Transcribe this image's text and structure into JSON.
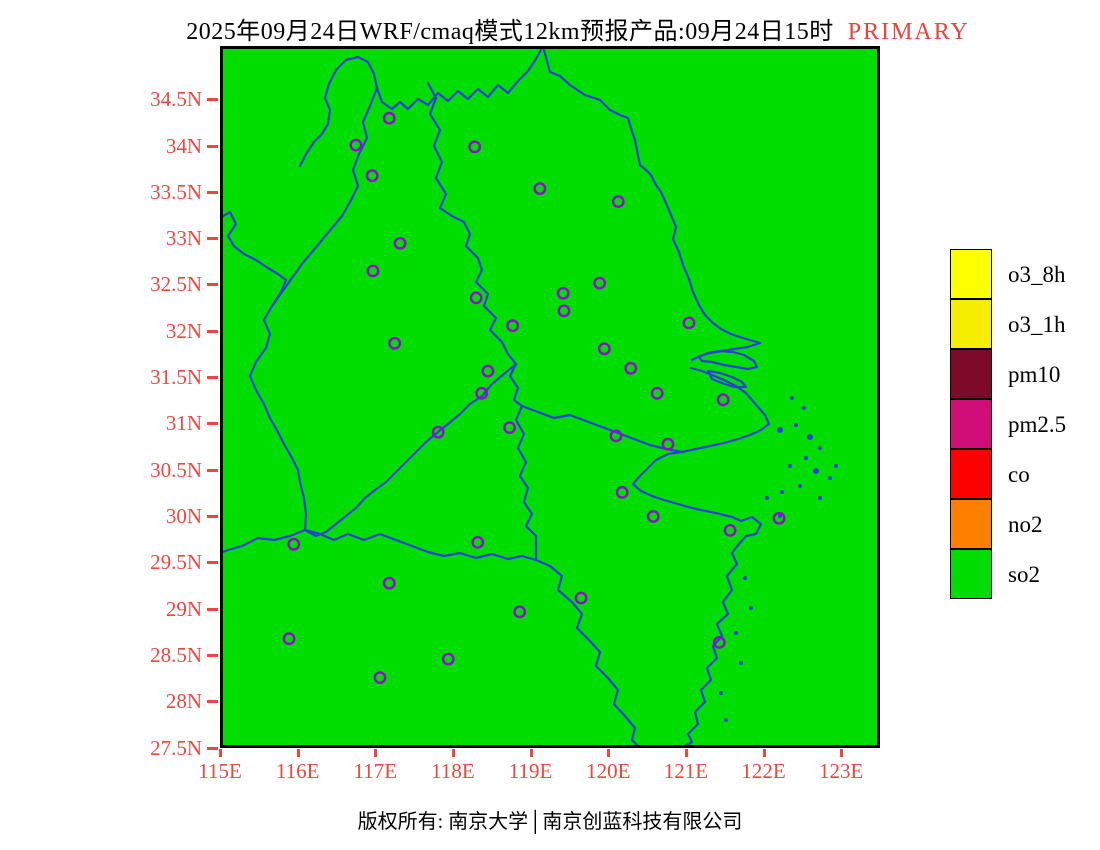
{
  "title": {
    "main": "2025年09月24日WRF/cmaq模式12km预报产品:09月24日15时",
    "tag": "PRIMARY",
    "tag_color": "#f0413c"
  },
  "axes": {
    "lat_ticks": [
      "34.5N",
      "34N",
      "33.5N",
      "33N",
      "32.5N",
      "32N",
      "31.5N",
      "31N",
      "30.5N",
      "30N",
      "29.5N",
      "29N",
      "28.5N",
      "28N",
      "27.5N"
    ],
    "lon_ticks": [
      "115E",
      "116E",
      "117E",
      "118E",
      "119E",
      "120E",
      "121E",
      "122E",
      "123E"
    ],
    "tick_color": "#f0463f"
  },
  "map": {
    "extent": {
      "lon_min": 115,
      "lon_max": 123.5,
      "lat_min": 27.5,
      "lat_max": 35.08
    },
    "colors": {
      "land": "#00dd00",
      "boundary": "#2b40d9",
      "station": "#9608d6",
      "frame": "#000000"
    },
    "stations": [
      [
        117.18,
        34.3
      ],
      [
        116.75,
        34.01
      ],
      [
        118.28,
        33.99
      ],
      [
        116.96,
        33.68
      ],
      [
        119.12,
        33.54
      ],
      [
        120.13,
        33.4
      ],
      [
        117.32,
        32.95
      ],
      [
        116.97,
        32.65
      ],
      [
        118.3,
        32.36
      ],
      [
        119.89,
        32.52
      ],
      [
        119.42,
        32.41
      ],
      [
        119.43,
        32.22
      ],
      [
        118.77,
        32.06
      ],
      [
        121.04,
        32.09
      ],
      [
        119.95,
        31.81
      ],
      [
        117.25,
        31.87
      ],
      [
        120.29,
        31.6
      ],
      [
        118.45,
        31.57
      ],
      [
        120.63,
        31.33
      ],
      [
        121.48,
        31.26
      ],
      [
        118.37,
        31.33
      ],
      [
        117.81,
        30.91
      ],
      [
        118.73,
        30.96
      ],
      [
        120.1,
        30.87
      ],
      [
        120.77,
        30.78
      ],
      [
        120.18,
        30.26
      ],
      [
        120.58,
        30.0
      ],
      [
        121.57,
        29.85
      ],
      [
        122.2,
        29.98
      ],
      [
        115.95,
        29.7
      ],
      [
        118.32,
        29.72
      ],
      [
        119.65,
        29.12
      ],
      [
        117.18,
        29.28
      ],
      [
        118.86,
        28.97
      ],
      [
        115.89,
        28.68
      ],
      [
        117.94,
        28.46
      ],
      [
        117.06,
        28.26
      ],
      [
        121.43,
        28.64
      ]
    ]
  },
  "legend": {
    "items": [
      {
        "label": "o3_8h",
        "color": "#ffff00"
      },
      {
        "label": "o3_1h",
        "color": "#f6ee00"
      },
      {
        "label": "pm10",
        "color": "#7c0a28"
      },
      {
        "label": "pm2.5",
        "color": "#cf0e78"
      },
      {
        "label": "co",
        "color": "#ff0000"
      },
      {
        "label": "no2",
        "color": "#ff8000"
      },
      {
        "label": "so2",
        "color": "#00dd00"
      }
    ]
  },
  "footer": {
    "text": "版权所有: 南京大学│南京创蓝科技有限公司"
  }
}
